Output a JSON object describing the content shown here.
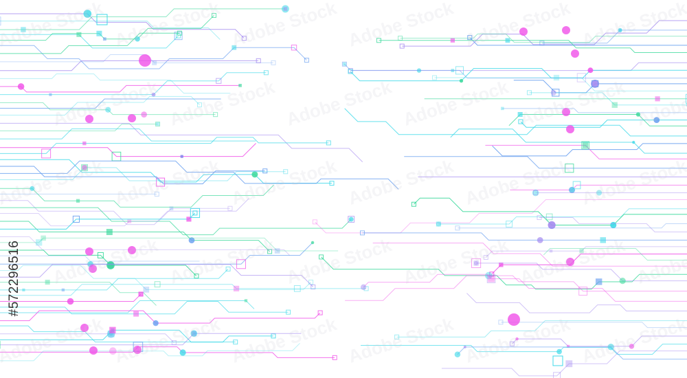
{
  "image": {
    "subject": "circuit-board-lines-background",
    "colors": {
      "cyan": "#3fd9e8",
      "magenta": "#f050e8",
      "violet": "#a48af0",
      "green": "#38d89a",
      "blue": "#6aa0f0",
      "background": "#ffffff"
    }
  },
  "watermark": {
    "text": "Adobe Stock",
    "stock_id": "#572296516"
  }
}
